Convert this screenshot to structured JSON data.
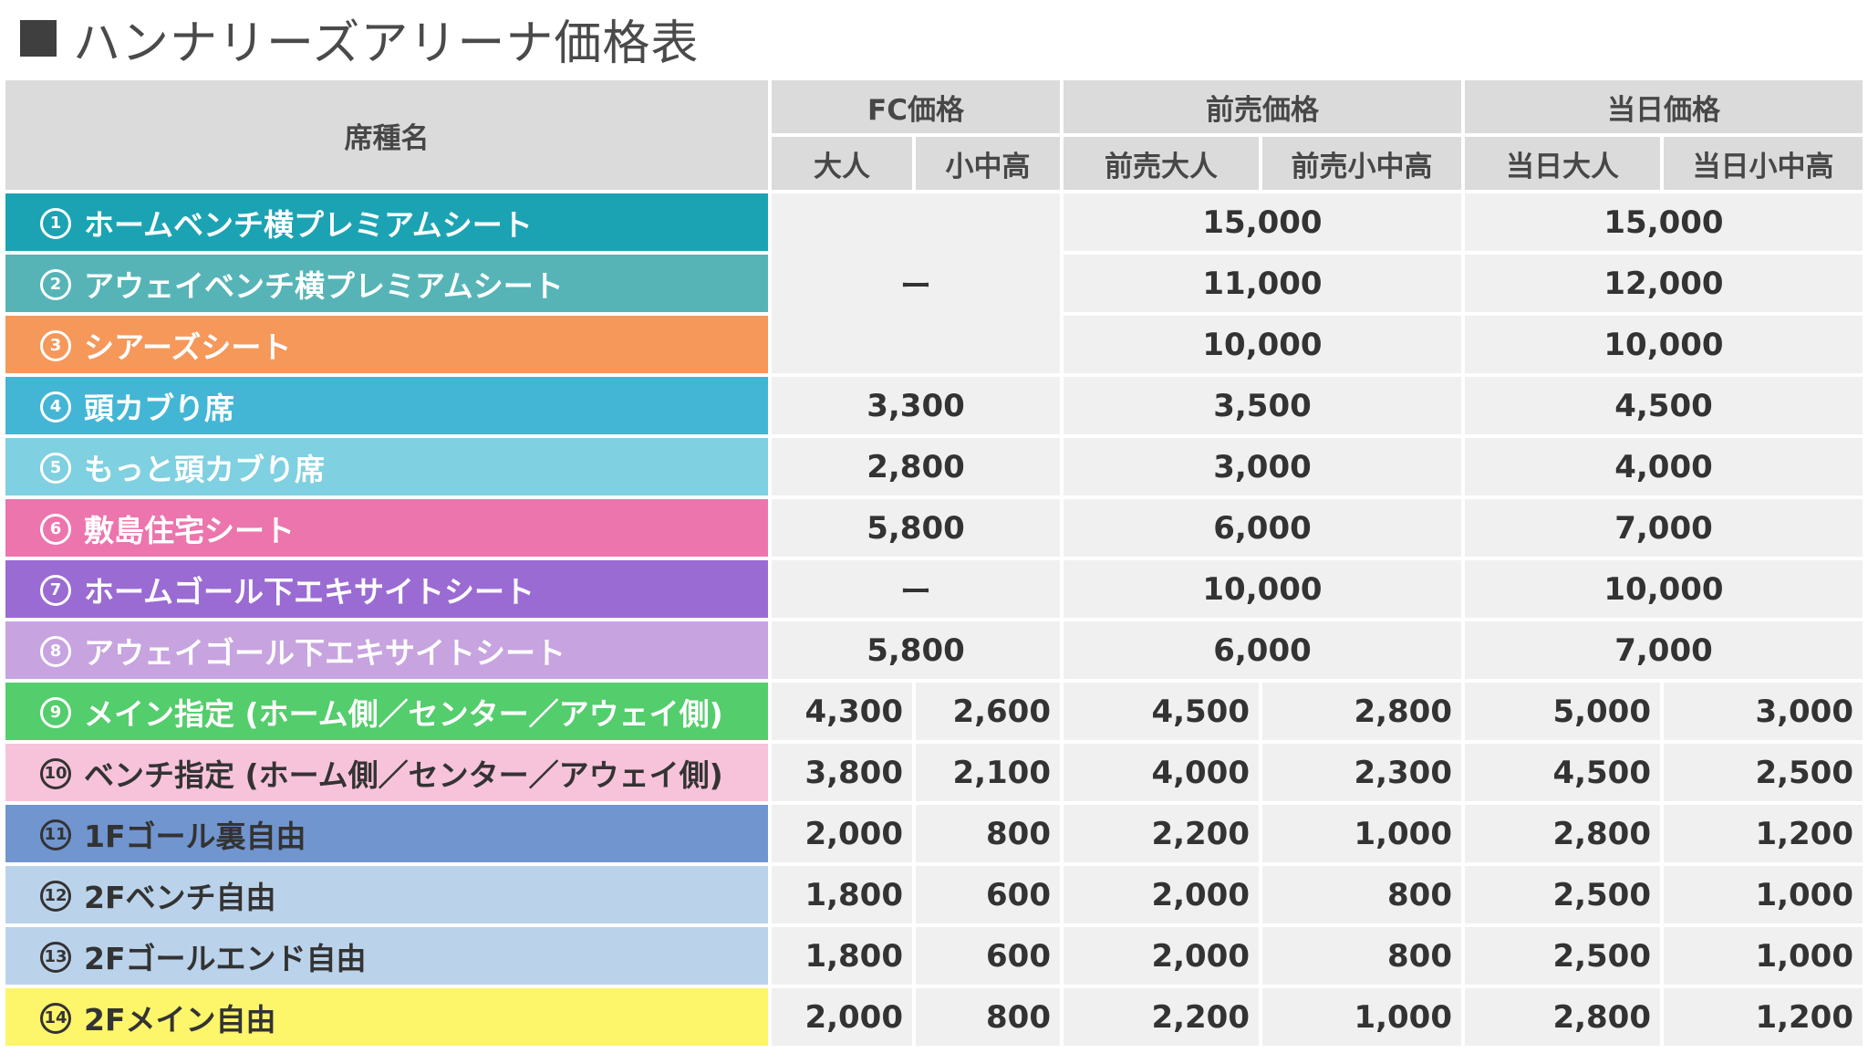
{
  "title": "ハンナリーズアリーナ価格表",
  "header": {
    "seat_name": "席種名",
    "fc": "FC価格",
    "presale": "前売価格",
    "dayof": "当日価格",
    "fc_adult": "大人",
    "fc_child": "小中高",
    "pre_adult": "前売大人",
    "pre_child": "前売小中高",
    "day_adult": "当日大人",
    "day_child": "当日小中高"
  },
  "rows": [
    {
      "num": "1",
      "name": "ホームベンチ横プレミアムシート",
      "color": "#1ca3b3",
      "dark": false,
      "presale": "15,000",
      "dayof": "15,000"
    },
    {
      "num": "2",
      "name": "アウェイベンチ横プレミアムシート",
      "color": "#56b4b7",
      "dark": false,
      "presale": "11,000",
      "dayof": "12,000"
    },
    {
      "num": "3",
      "name": "シアーズシート",
      "color": "#f5985a",
      "dark": false,
      "presale": "10,000",
      "dayof": "10,000"
    },
    {
      "num": "4",
      "name": "頭カブり席",
      "color": "#43b6d5",
      "dark": false,
      "fc": "3,300",
      "presale": "3,500",
      "dayof": "4,500"
    },
    {
      "num": "5",
      "name": "もっと頭カブり席",
      "color": "#7fd0e0",
      "dark": false,
      "fc": "2,800",
      "presale": "3,000",
      "dayof": "4,000"
    },
    {
      "num": "6",
      "name": "敷島住宅シート",
      "color": "#ec75ad",
      "dark": false,
      "fc": "5,800",
      "presale": "6,000",
      "dayof": "7,000"
    },
    {
      "num": "7",
      "name": "ホームゴール下エキサイトシート",
      "color": "#9a6bd3",
      "dark": false,
      "fc": "ー",
      "presale": "10,000",
      "dayof": "10,000"
    },
    {
      "num": "8",
      "name": "アウェイゴール下エキサイトシート",
      "color": "#c7a3e0",
      "dark": false,
      "fc": "5,800",
      "presale": "6,000",
      "dayof": "7,000"
    },
    {
      "num": "9",
      "name": "メイン指定 (ホーム側／センター／アウェイ側)",
      "color": "#54cd6c",
      "dark": false,
      "fc_adult": "4,300",
      "fc_child": "2,600",
      "pre_adult": "4,500",
      "pre_child": "2,800",
      "day_adult": "5,000",
      "day_child": "3,000"
    },
    {
      "num": "10",
      "name": "ベンチ指定 (ホーム側／センター／アウェイ側)",
      "color": "#f7c3da",
      "dark": true,
      "fc_adult": "3,800",
      "fc_child": "2,100",
      "pre_adult": "4,000",
      "pre_child": "2,300",
      "day_adult": "4,500",
      "day_child": "2,500"
    },
    {
      "num": "11",
      "name": "1Fゴール裏自由",
      "color": "#7195cf",
      "dark": true,
      "fc_adult": "2,000",
      "fc_child": "800",
      "pre_adult": "2,200",
      "pre_child": "1,000",
      "day_adult": "2,800",
      "day_child": "1,200"
    },
    {
      "num": "12",
      "name": "2Fベンチ自由",
      "color": "#bbd3ea",
      "dark": true,
      "fc_adult": "1,800",
      "fc_child": "600",
      "pre_adult": "2,000",
      "pre_child": "800",
      "day_adult": "2,500",
      "day_child": "1,000"
    },
    {
      "num": "13",
      "name": "2Fゴールエンド自由",
      "color": "#bbd3ea",
      "dark": true,
      "fc_adult": "1,800",
      "fc_child": "600",
      "pre_adult": "2,000",
      "pre_child": "800",
      "day_adult": "2,500",
      "day_child": "1,000"
    },
    {
      "num": "14",
      "name": "2Fメイン自由",
      "color": "#fdf56a",
      "dark": true,
      "fc_adult": "2,000",
      "fc_child": "800",
      "pre_adult": "2,200",
      "pre_child": "1,000",
      "day_adult": "2,800",
      "day_child": "1,200"
    }
  ],
  "merged_fc_dash": "ー"
}
